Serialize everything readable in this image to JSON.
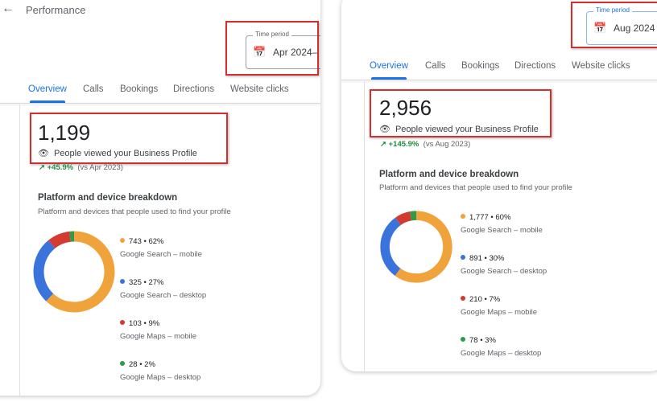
{
  "colors": {
    "google_search_mobile": "#f0a33a",
    "google_search_desktop": "#3b73dd",
    "google_maps_mobile": "#d33b30",
    "google_maps_desktop": "#2e9a4a",
    "accent": "#1a73e8",
    "highlight": "#d32f2f"
  },
  "panels": [
    {
      "header_title": "Performance",
      "back_icon": "arrow-left-icon",
      "time_period": {
        "label": "Time period",
        "value": "Apr 2024–"
      },
      "tabs": [
        "Overview",
        "Calls",
        "Bookings",
        "Directions",
        "Website clicks"
      ],
      "active_tab": "Overview",
      "views": {
        "count": "1,199",
        "label": "People viewed your Business Profile",
        "change": "+45.9%",
        "compare": "(vs Apr 2023)"
      },
      "breakdown": {
        "title": "Platform and device breakdown",
        "subtitle": "Platform and devices that people used to find your profile",
        "items": [
          {
            "value": "743 • 62%",
            "label": "Google Search – mobile",
            "percent": 62
          },
          {
            "value": "325 • 27%",
            "label": "Google Search – desktop",
            "percent": 27
          },
          {
            "value": "103 • 9%",
            "label": "Google Maps – mobile",
            "percent": 9
          },
          {
            "value": "28 • 2%",
            "label": "Google Maps – desktop",
            "percent": 2
          }
        ]
      }
    },
    {
      "time_period": {
        "label": "Time period",
        "value": "Aug 2024"
      },
      "tabs": [
        "Overview",
        "Calls",
        "Bookings",
        "Directions",
        "Website clicks"
      ],
      "active_tab": "Overview",
      "views": {
        "count": "2,956",
        "label": "People viewed your Business Profile",
        "change": "+145.9%",
        "compare": "(vs Aug 2023)"
      },
      "breakdown": {
        "title": "Platform and device breakdown",
        "subtitle": "Platform and devices that people used to find your profile",
        "items": [
          {
            "value": "1,777 • 60%",
            "label": "Google Search – mobile",
            "percent": 60
          },
          {
            "value": "891 • 30%",
            "label": "Google Search – desktop",
            "percent": 30
          },
          {
            "value": "210 • 7%",
            "label": "Google Maps – mobile",
            "percent": 7
          },
          {
            "value": "78 • 3%",
            "label": "Google Maps – desktop",
            "percent": 3
          }
        ]
      }
    }
  ]
}
